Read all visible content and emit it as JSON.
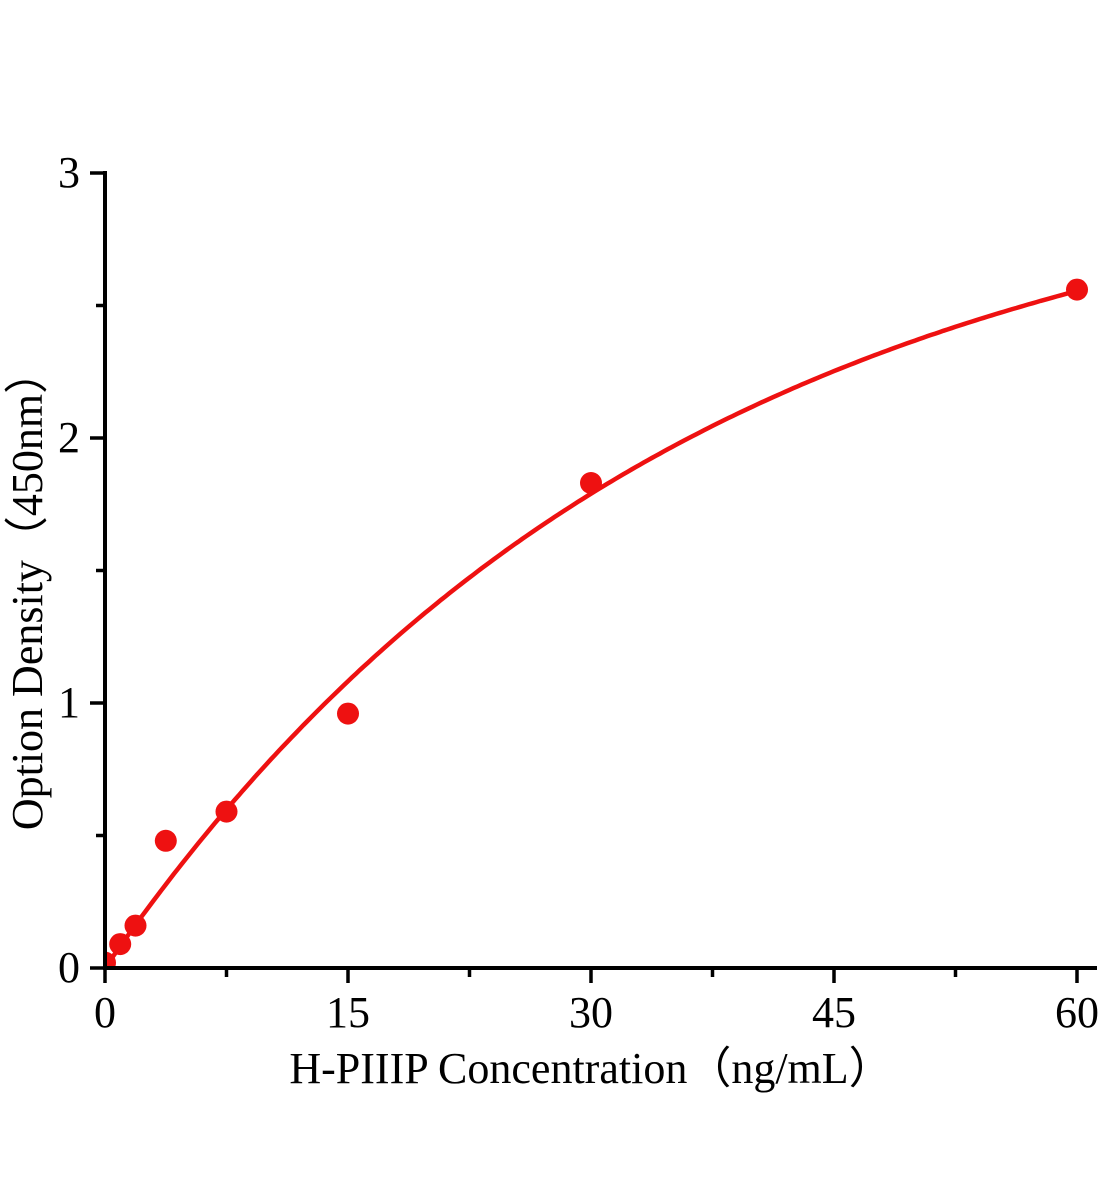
{
  "figure": {
    "background": "#ffffff"
  },
  "chart_data": {
    "type": "scatter",
    "title": "",
    "xlabel": "H-PIIIP Concentration（ng/mL）",
    "ylabel": "Option Density（450nm）",
    "xlim": [
      0,
      60
    ],
    "ylim": [
      0,
      3
    ],
    "x_major_ticks": [
      0,
      15,
      30,
      45,
      60
    ],
    "x_minor_ticks": [
      7.5,
      22.5,
      37.5,
      52.5
    ],
    "y_major_ticks": [
      0,
      1,
      2,
      3
    ],
    "y_minor_ticks": [
      0.5,
      1.5,
      2.5
    ],
    "grid": false,
    "legend": null,
    "axis_color": "#000000",
    "series": [
      {
        "marker": "circle",
        "color": "#ee1111",
        "points": [
          {
            "x": 0,
            "y": 0.02
          },
          {
            "x": 0.94,
            "y": 0.09
          },
          {
            "x": 1.88,
            "y": 0.16
          },
          {
            "x": 3.75,
            "y": 0.48
          },
          {
            "x": 7.5,
            "y": 0.59
          },
          {
            "x": 15,
            "y": 0.96
          },
          {
            "x": 30,
            "y": 1.83
          },
          {
            "x": 60,
            "y": 2.56
          }
        ]
      }
    ],
    "fit_curve": {
      "model": "y = a*(1 - exp(-x/b))",
      "a": 3.126,
      "b": 35.3,
      "x_range": [
        0,
        60
      ],
      "color": "#ee1111"
    }
  }
}
